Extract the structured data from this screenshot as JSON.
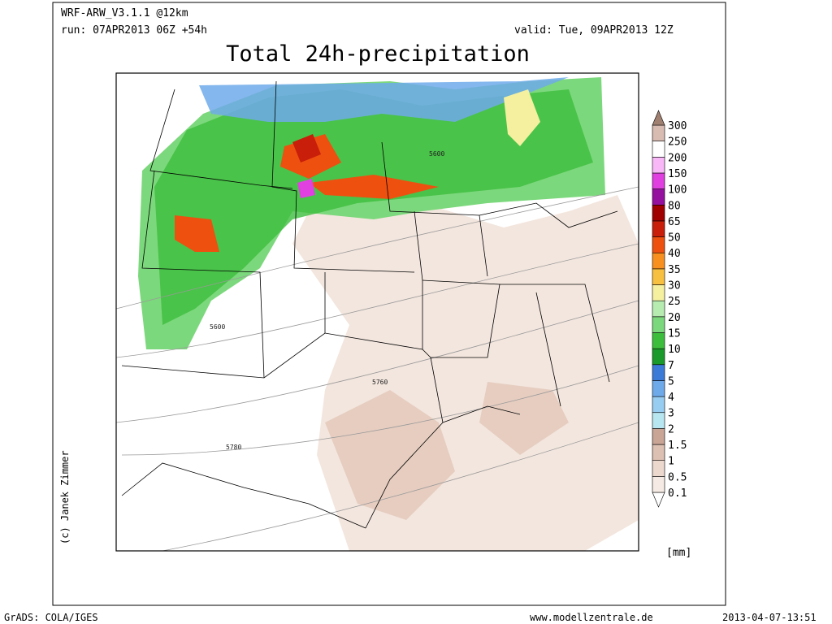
{
  "header": {
    "model": "WRF-ARW_V3.1.1 @12km",
    "run": "run: 07APR2013 06Z +54h",
    "valid": "valid: Tue, 09APR2013 12Z",
    "title": "Total 24h-precipitation"
  },
  "map": {
    "contour_labels": [
      "5600",
      "5600",
      "5760",
      "5780"
    ],
    "credit": "(c) Janek Zimmer"
  },
  "colorbar": {
    "unit": "[mm]",
    "levels": [
      0.1,
      0.5,
      1,
      1.5,
      2,
      3,
      4,
      5,
      7,
      10,
      15,
      20,
      25,
      30,
      35,
      40,
      50,
      65,
      80,
      100,
      150,
      200,
      250,
      300
    ],
    "colors": [
      "#ffffff",
      "#f6ebe4",
      "#ecd8cd",
      "#dcc0b2",
      "#c9a596",
      "#b8e6f0",
      "#98cdf2",
      "#6eaaea",
      "#3c7ad8",
      "#1a9a2a",
      "#3cbe3c",
      "#7cd87c",
      "#b6ecb0",
      "#f4f0a0",
      "#f8c040",
      "#f89020",
      "#ee5010",
      "#c81e0a",
      "#a00000",
      "#9610a0",
      "#e040e0",
      "#f8b8f8",
      "#ffffff",
      "#d8bcb2",
      "#a08070"
    ]
  },
  "footer": {
    "software": "GrADS: COLA/IGES",
    "website": "www.modellzentrale.de",
    "timestamp": "2013-04-07-13:51"
  }
}
